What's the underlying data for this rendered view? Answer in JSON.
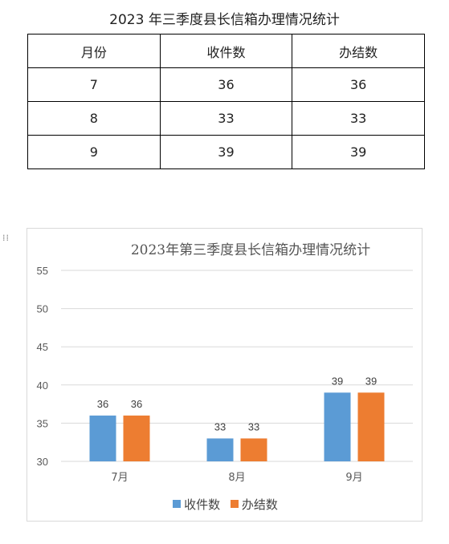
{
  "document": {
    "title": "2023 年三季度县长信箱办理情况统计"
  },
  "table": {
    "headers": [
      "月份",
      "收件数",
      "办结数"
    ],
    "rows": [
      [
        "7",
        "36",
        "36"
      ],
      [
        "8",
        "33",
        "33"
      ],
      [
        "9",
        "39",
        "39"
      ]
    ]
  },
  "chart_data": {
    "type": "bar",
    "title": "2023年第三季度县长信箱办理情况统计",
    "categories": [
      "7月",
      "8月",
      "9月"
    ],
    "series": [
      {
        "name": "收件数",
        "values": [
          36,
          33,
          39
        ],
        "color": "#5b9bd5"
      },
      {
        "name": "办结数",
        "values": [
          36,
          33,
          39
        ],
        "color": "#ed7d31"
      }
    ],
    "ylim": [
      30,
      55
    ],
    "yticks": [
      30,
      35,
      40,
      45,
      50,
      55
    ],
    "grid": true,
    "data_labels": true,
    "legend_position": "bottom"
  },
  "icons": {
    "drag_handle": "drag-handle-icon"
  }
}
